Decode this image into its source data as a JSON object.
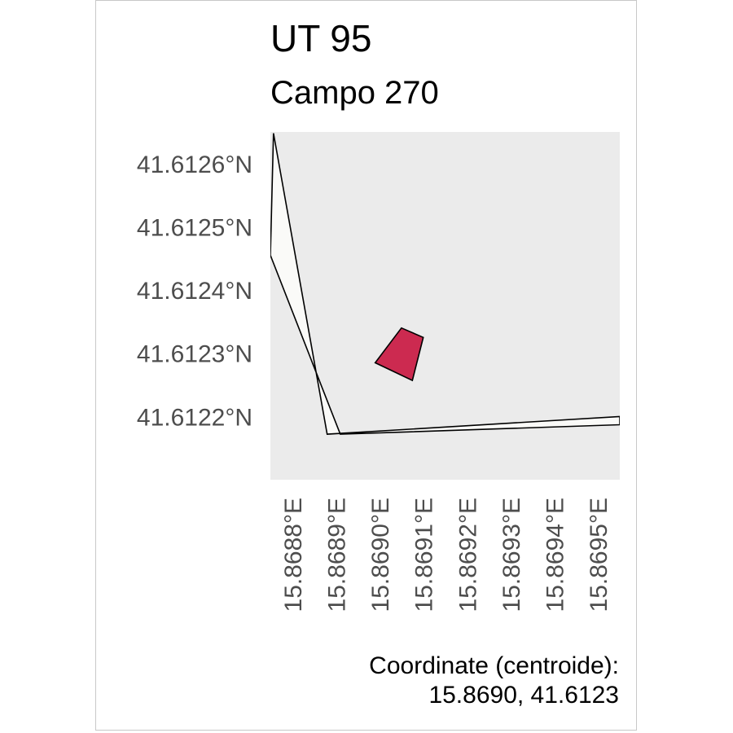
{
  "title": "UT 95",
  "subtitle": "Campo 270",
  "caption": {
    "line1": "Coordinate (centroide):",
    "line2": "15.8690, 41.6123"
  },
  "colors": {
    "panel_background": "#ebebeb",
    "road_fill": "#fafaf8",
    "parcel_fill": "#cc2a50",
    "outline": "#000000",
    "tick_text": "#4d4d4d"
  },
  "chart_data": {
    "type": "map",
    "xlim": [
      15.86875,
      15.86955
    ],
    "ylim": [
      41.6121,
      41.61265
    ],
    "y_ticks": [
      {
        "value": 41.6126,
        "label": "41.6126°N"
      },
      {
        "value": 41.6125,
        "label": "41.6125°N"
      },
      {
        "value": 41.6124,
        "label": "41.6124°N"
      },
      {
        "value": 41.6123,
        "label": "41.6123°N"
      },
      {
        "value": 41.6122,
        "label": "41.6122°N"
      }
    ],
    "x_ticks": [
      {
        "value": 15.8688,
        "label": "15.8688°E"
      },
      {
        "value": 15.8689,
        "label": "15.8689°E"
      },
      {
        "value": 15.869,
        "label": "15.8690°E"
      },
      {
        "value": 15.8691,
        "label": "15.8691°E"
      },
      {
        "value": 15.8692,
        "label": "15.8692°E"
      },
      {
        "value": 15.8693,
        "label": "15.8693°E"
      },
      {
        "value": 15.8694,
        "label": "15.8694°E"
      },
      {
        "value": 15.8695,
        "label": "15.8695°E"
      }
    ],
    "road": [
      [
        15.868757,
        41.612648
      ],
      [
        15.86888,
        41.612172
      ],
      [
        15.86955,
        41.6122
      ],
      [
        15.86955,
        41.612187
      ],
      [
        15.86891,
        41.612172
      ],
      [
        15.86875,
        41.612455
      ]
    ],
    "parcel": [
      [
        15.86899,
        41.612285
      ],
      [
        15.86905,
        41.61234
      ],
      [
        15.8691,
        41.612325
      ],
      [
        15.869075,
        41.612257
      ]
    ],
    "centroid": [
      15.869,
      41.6123
    ]
  }
}
